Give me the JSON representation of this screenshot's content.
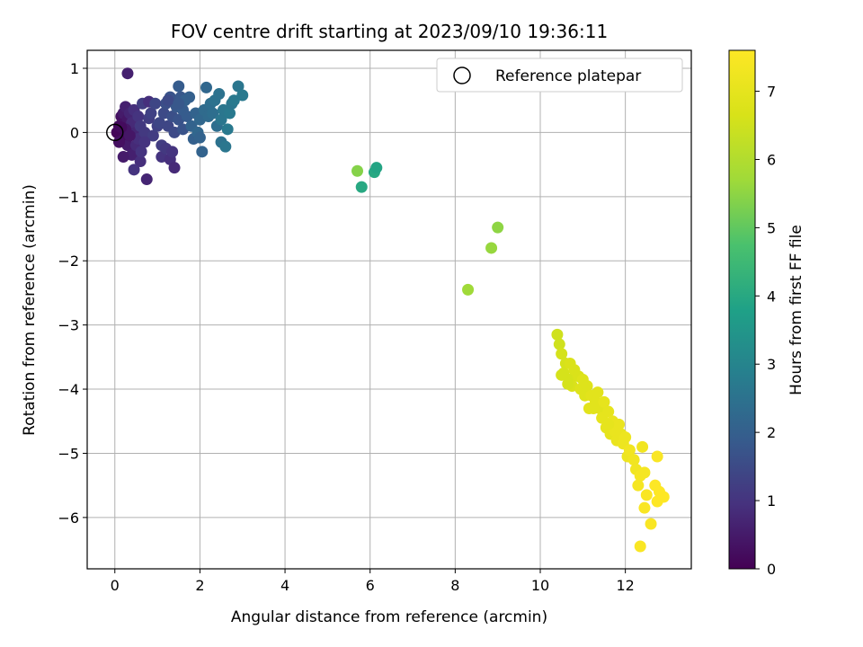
{
  "chart_data": {
    "type": "scatter",
    "title": "FOV centre drift starting at 2023/09/10 19:36:11",
    "xlabel": "Angular distance from reference (arcmin)",
    "ylabel": "Rotation from reference (arcmin)",
    "xlim": [
      -0.65,
      13.55
    ],
    "ylim": [
      -6.8,
      1.28
    ],
    "xticks": [
      "0",
      "2",
      "4",
      "6",
      "8",
      "10",
      "12"
    ],
    "xtick_values": [
      0,
      2,
      4,
      6,
      8,
      10,
      12
    ],
    "yticks": [
      "1",
      "0",
      "−1",
      "−2",
      "−3",
      "−4",
      "−5",
      "−6"
    ],
    "ytick_values": [
      1,
      0,
      -1,
      -2,
      -3,
      -4,
      -5,
      -6
    ],
    "grid": true,
    "legend": {
      "position": "top-right",
      "label": "Reference platepar"
    },
    "reference_point": {
      "x": 0,
      "y": 0
    },
    "colorbar": {
      "label": "Hours from first FF file",
      "colormap": "viridis",
      "range": [
        0,
        7.6
      ],
      "ticks": [
        "0",
        "1",
        "2",
        "3",
        "4",
        "5",
        "6",
        "7"
      ],
      "tick_values": [
        0,
        1,
        2,
        3,
        4,
        5,
        6,
        7
      ]
    },
    "points": [
      [
        0.05,
        0.0,
        0.1
      ],
      [
        0.1,
        0.1,
        0.2
      ],
      [
        0.15,
        0.25,
        0.3
      ],
      [
        0.2,
        -0.1,
        0.2
      ],
      [
        0.2,
        0.3,
        0.5
      ],
      [
        0.25,
        0.4,
        0.6
      ],
      [
        0.3,
        0.2,
        0.4
      ],
      [
        0.3,
        -0.2,
        0.5
      ],
      [
        0.35,
        0.05,
        0.3
      ],
      [
        0.35,
        0.3,
        0.7
      ],
      [
        0.4,
        0.15,
        0.8
      ],
      [
        0.4,
        -0.35,
        0.6
      ],
      [
        0.45,
        0.35,
        0.9
      ],
      [
        0.5,
        0.0,
        0.7
      ],
      [
        0.5,
        -0.2,
        0.8
      ],
      [
        0.55,
        0.25,
        1.0
      ],
      [
        0.6,
        0.1,
        1.1
      ],
      [
        0.6,
        -0.45,
        0.9
      ],
      [
        0.2,
        -0.38,
        0.5
      ],
      [
        0.25,
        0.05,
        0.4
      ],
      [
        0.3,
        0.92,
        0.6
      ],
      [
        0.45,
        -0.58,
        1.0
      ],
      [
        0.55,
        -0.1,
        0.9
      ],
      [
        0.62,
        -0.3,
        1.0
      ],
      [
        0.65,
        0.45,
        1.2
      ],
      [
        0.7,
        0.0,
        1.1
      ],
      [
        0.75,
        -0.73,
        0.7
      ],
      [
        0.8,
        0.22,
        1.2
      ],
      [
        0.8,
        0.48,
        0.9
      ],
      [
        0.85,
        0.3,
        1.3
      ],
      [
        0.9,
        -0.05,
        1.2
      ],
      [
        1.0,
        0.1,
        1.3
      ],
      [
        1.05,
        0.15,
        1.4
      ],
      [
        1.1,
        -0.2,
        1.2
      ],
      [
        1.1,
        -0.38,
        1.0
      ],
      [
        1.15,
        0.3,
        1.5
      ],
      [
        1.2,
        0.45,
        1.6
      ],
      [
        1.2,
        -0.25,
        1.1
      ],
      [
        1.25,
        0.1,
        1.4
      ],
      [
        1.3,
        -0.42,
        0.9
      ],
      [
        1.3,
        0.55,
        1.7
      ],
      [
        1.35,
        0.25,
        1.6
      ],
      [
        1.35,
        -0.3,
        1.0
      ],
      [
        1.4,
        0.0,
        1.5
      ],
      [
        1.4,
        -0.55,
        0.8
      ],
      [
        1.45,
        0.4,
        1.8
      ],
      [
        1.5,
        0.72,
        1.9
      ],
      [
        1.5,
        0.2,
        1.7
      ],
      [
        1.55,
        0.55,
        1.8
      ],
      [
        1.6,
        0.35,
        1.9
      ],
      [
        1.6,
        0.05,
        1.7
      ],
      [
        1.65,
        0.5,
        2.0
      ],
      [
        1.7,
        0.25,
        1.9
      ],
      [
        1.75,
        0.55,
        2.0
      ],
      [
        1.8,
        0.1,
        2.1
      ],
      [
        1.85,
        -0.1,
        2.0
      ],
      [
        1.9,
        0.3,
        2.1
      ],
      [
        1.95,
        0.0,
        2.2
      ],
      [
        2.0,
        -0.08,
        2.1
      ],
      [
        2.0,
        0.2,
        2.2
      ],
      [
        2.05,
        -0.3,
        2.1
      ],
      [
        2.1,
        0.35,
        2.3
      ],
      [
        2.15,
        0.7,
        2.2
      ],
      [
        2.2,
        0.25,
        2.3
      ],
      [
        2.25,
        0.45,
        2.4
      ],
      [
        2.3,
        0.3,
        2.4
      ],
      [
        2.35,
        0.5,
        2.5
      ],
      [
        2.4,
        0.1,
        2.4
      ],
      [
        2.45,
        0.6,
        2.5
      ],
      [
        2.5,
        0.2,
        2.6
      ],
      [
        2.5,
        -0.15,
        2.5
      ],
      [
        2.55,
        0.35,
        2.6
      ],
      [
        2.6,
        -0.22,
        2.6
      ],
      [
        2.65,
        0.05,
        2.7
      ],
      [
        2.7,
        0.3,
        2.7
      ],
      [
        2.75,
        0.45,
        2.6
      ],
      [
        2.8,
        0.5,
        2.7
      ],
      [
        2.9,
        0.72,
        2.6
      ],
      [
        3.0,
        0.58,
        2.7
      ],
      [
        0.1,
        -0.15,
        0.3
      ],
      [
        0.35,
        -0.05,
        0.4
      ],
      [
        0.95,
        0.45,
        1.4
      ],
      [
        1.25,
        0.5,
        1.5
      ],
      [
        1.5,
        0.45,
        1.8
      ],
      [
        0.7,
        -0.15,
        1.0
      ],
      [
        0.15,
        0.08,
        0.2
      ],
      [
        5.7,
        -0.6,
        5.4
      ],
      [
        5.8,
        -0.85,
        4.0
      ],
      [
        6.1,
        -0.62,
        4.0
      ],
      [
        6.15,
        -0.55,
        3.9
      ],
      [
        9.0,
        -1.48,
        5.5
      ],
      [
        8.85,
        -1.8,
        5.6
      ],
      [
        8.3,
        -2.45,
        5.7
      ],
      [
        10.4,
        -3.15,
        6.5
      ],
      [
        10.45,
        -3.3,
        6.5
      ],
      [
        10.5,
        -3.45,
        6.6
      ],
      [
        10.6,
        -3.6,
        6.6
      ],
      [
        10.55,
        -3.75,
        6.6
      ],
      [
        10.7,
        -3.6,
        6.7
      ],
      [
        10.7,
        -3.85,
        6.6
      ],
      [
        10.8,
        -3.7,
        6.7
      ],
      [
        10.75,
        -3.95,
        6.7
      ],
      [
        10.9,
        -3.8,
        6.7
      ],
      [
        10.95,
        -4.0,
        6.8
      ],
      [
        11.0,
        -3.85,
        6.8
      ],
      [
        11.05,
        -4.1,
        6.8
      ],
      [
        11.1,
        -3.95,
        6.8
      ],
      [
        11.15,
        -4.3,
        6.9
      ],
      [
        11.2,
        -4.1,
        6.9
      ],
      [
        11.3,
        -4.2,
        6.9
      ],
      [
        11.35,
        -4.05,
        6.9
      ],
      [
        11.4,
        -4.3,
        6.9
      ],
      [
        11.45,
        -4.45,
        7.0
      ],
      [
        11.5,
        -4.2,
        7.0
      ],
      [
        11.55,
        -4.6,
        7.0
      ],
      [
        11.6,
        -4.35,
        7.0
      ],
      [
        11.65,
        -4.7,
        7.0
      ],
      [
        11.7,
        -4.5,
        7.1
      ],
      [
        11.75,
        -4.65,
        7.1
      ],
      [
        11.8,
        -4.8,
        7.1
      ],
      [
        11.85,
        -4.55,
        7.1
      ],
      [
        11.9,
        -4.7,
        7.1
      ],
      [
        11.95,
        -4.85,
        7.2
      ],
      [
        12.0,
        -4.75,
        7.2
      ],
      [
        12.05,
        -5.05,
        7.2
      ],
      [
        12.1,
        -4.95,
        7.3
      ],
      [
        12.2,
        -5.1,
        7.3
      ],
      [
        12.25,
        -5.25,
        7.3
      ],
      [
        12.35,
        -5.35,
        7.4
      ],
      [
        12.4,
        -4.9,
        7.3
      ],
      [
        12.45,
        -5.3,
        7.4
      ],
      [
        12.3,
        -5.5,
        7.4
      ],
      [
        12.5,
        -5.65,
        7.5
      ],
      [
        12.45,
        -5.85,
        7.5
      ],
      [
        12.6,
        -6.1,
        7.5
      ],
      [
        12.35,
        -6.45,
        7.5
      ],
      [
        12.75,
        -5.05,
        7.5
      ],
      [
        12.7,
        -5.5,
        7.6
      ],
      [
        12.8,
        -5.6,
        7.6
      ],
      [
        12.75,
        -5.75,
        7.6
      ],
      [
        12.9,
        -5.68,
        7.6
      ],
      [
        10.5,
        -3.78,
        6.6
      ],
      [
        10.65,
        -3.92,
        6.6
      ],
      [
        11.25,
        -4.3,
        6.9
      ],
      [
        11.6,
        -4.55,
        7.0
      ]
    ]
  }
}
